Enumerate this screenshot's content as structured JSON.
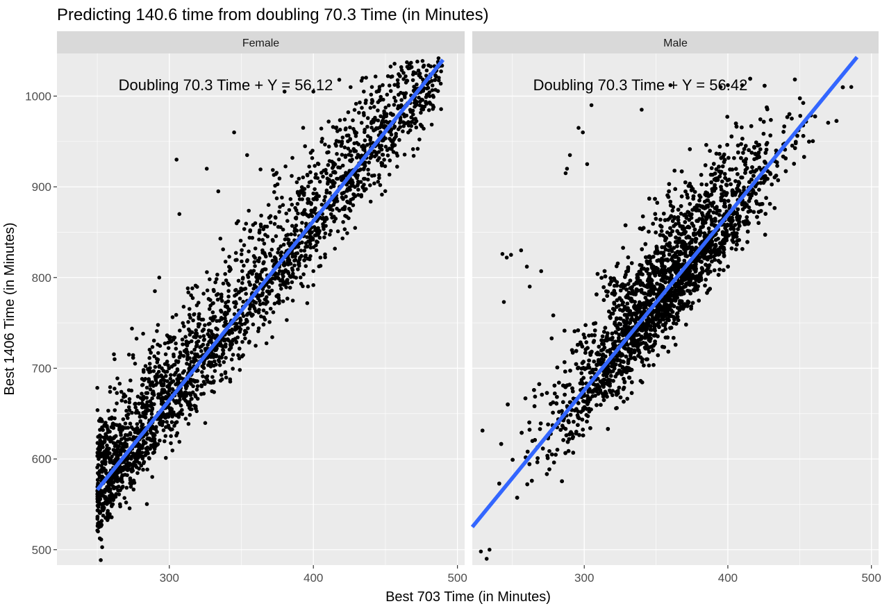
{
  "chart_data": {
    "type": "scatter",
    "title": "Predicting 140.6 time from doubling 70.3 Time (in Minutes)",
    "xlabel": "Best 703 Time (in Minutes)",
    "ylabel": "Best 1406 Time (in Minutes)",
    "xlim": [
      222,
      505
    ],
    "ylim": [
      483,
      1047
    ],
    "x_ticks": [
      300,
      400,
      500
    ],
    "x_tick_labels": [
      "300",
      "400",
      "500"
    ],
    "y_ticks": [
      500,
      600,
      700,
      800,
      900,
      1000
    ],
    "y_tick_labels": [
      "500",
      "600",
      "700",
      "800",
      "900",
      "1000"
    ],
    "grid": true,
    "colors": {
      "panel_bg": "#ebebeb",
      "strip_bg": "#d9d9d9",
      "grid": "#ffffff",
      "point": "#000000",
      "fit_line": "#3366ff"
    },
    "panels": [
      {
        "facet": "Female",
        "annotation": "Doubling 70.3 Time + Y = 56.12",
        "fit_line": {
          "x": [
            250,
            490
          ],
          "y": [
            566,
            1040
          ]
        },
        "point_cloud": {
          "x_range": [
            250,
            490
          ],
          "density": "medium",
          "intercept": 56.12,
          "spread_below": 55,
          "spread_above": 75
        },
        "outliers": [
          {
            "x": 262,
            "y": 710
          },
          {
            "x": 272,
            "y": 715
          },
          {
            "x": 305,
            "y": 930
          },
          {
            "x": 307,
            "y": 870
          },
          {
            "x": 293,
            "y": 800
          },
          {
            "x": 290,
            "y": 785
          },
          {
            "x": 354,
            "y": 935
          },
          {
            "x": 345,
            "y": 960
          },
          {
            "x": 380,
            "y": 1005
          },
          {
            "x": 400,
            "y": 1005
          },
          {
            "x": 418,
            "y": 1018
          },
          {
            "x": 435,
            "y": 1005
          },
          {
            "x": 326,
            "y": 920
          },
          {
            "x": 334,
            "y": 895
          },
          {
            "x": 260,
            "y": 548
          },
          {
            "x": 257,
            "y": 540
          },
          {
            "x": 270,
            "y": 552
          }
        ]
      },
      {
        "facet": "Male",
        "annotation": "Doubling 70.3 Time + Y = 56.42",
        "fit_line": {
          "x": [
            222,
            490
          ],
          "y": [
            525,
            1043
          ]
        },
        "point_cloud": {
          "x_range": [
            222,
            490
          ],
          "density": "high",
          "intercept": 56.42,
          "spread_below": 55,
          "spread_above": 80
        },
        "outliers": [
          {
            "x": 243,
            "y": 826
          },
          {
            "x": 246,
            "y": 822
          },
          {
            "x": 249,
            "y": 825
          },
          {
            "x": 256,
            "y": 830
          },
          {
            "x": 260,
            "y": 812
          },
          {
            "x": 270,
            "y": 807
          },
          {
            "x": 244,
            "y": 773
          },
          {
            "x": 262,
            "y": 790
          },
          {
            "x": 288,
            "y": 920
          },
          {
            "x": 290,
            "y": 935
          },
          {
            "x": 296,
            "y": 965
          },
          {
            "x": 299,
            "y": 960
          },
          {
            "x": 305,
            "y": 990
          },
          {
            "x": 340,
            "y": 985
          },
          {
            "x": 360,
            "y": 1012
          },
          {
            "x": 400,
            "y": 1012
          },
          {
            "x": 395,
            "y": 1010
          },
          {
            "x": 410,
            "y": 1012
          },
          {
            "x": 287,
            "y": 915
          },
          {
            "x": 302,
            "y": 925
          },
          {
            "x": 232,
            "y": 490
          },
          {
            "x": 234,
            "y": 500
          },
          {
            "x": 228,
            "y": 498
          },
          {
            "x": 486,
            "y": 1010
          }
        ]
      }
    ]
  }
}
